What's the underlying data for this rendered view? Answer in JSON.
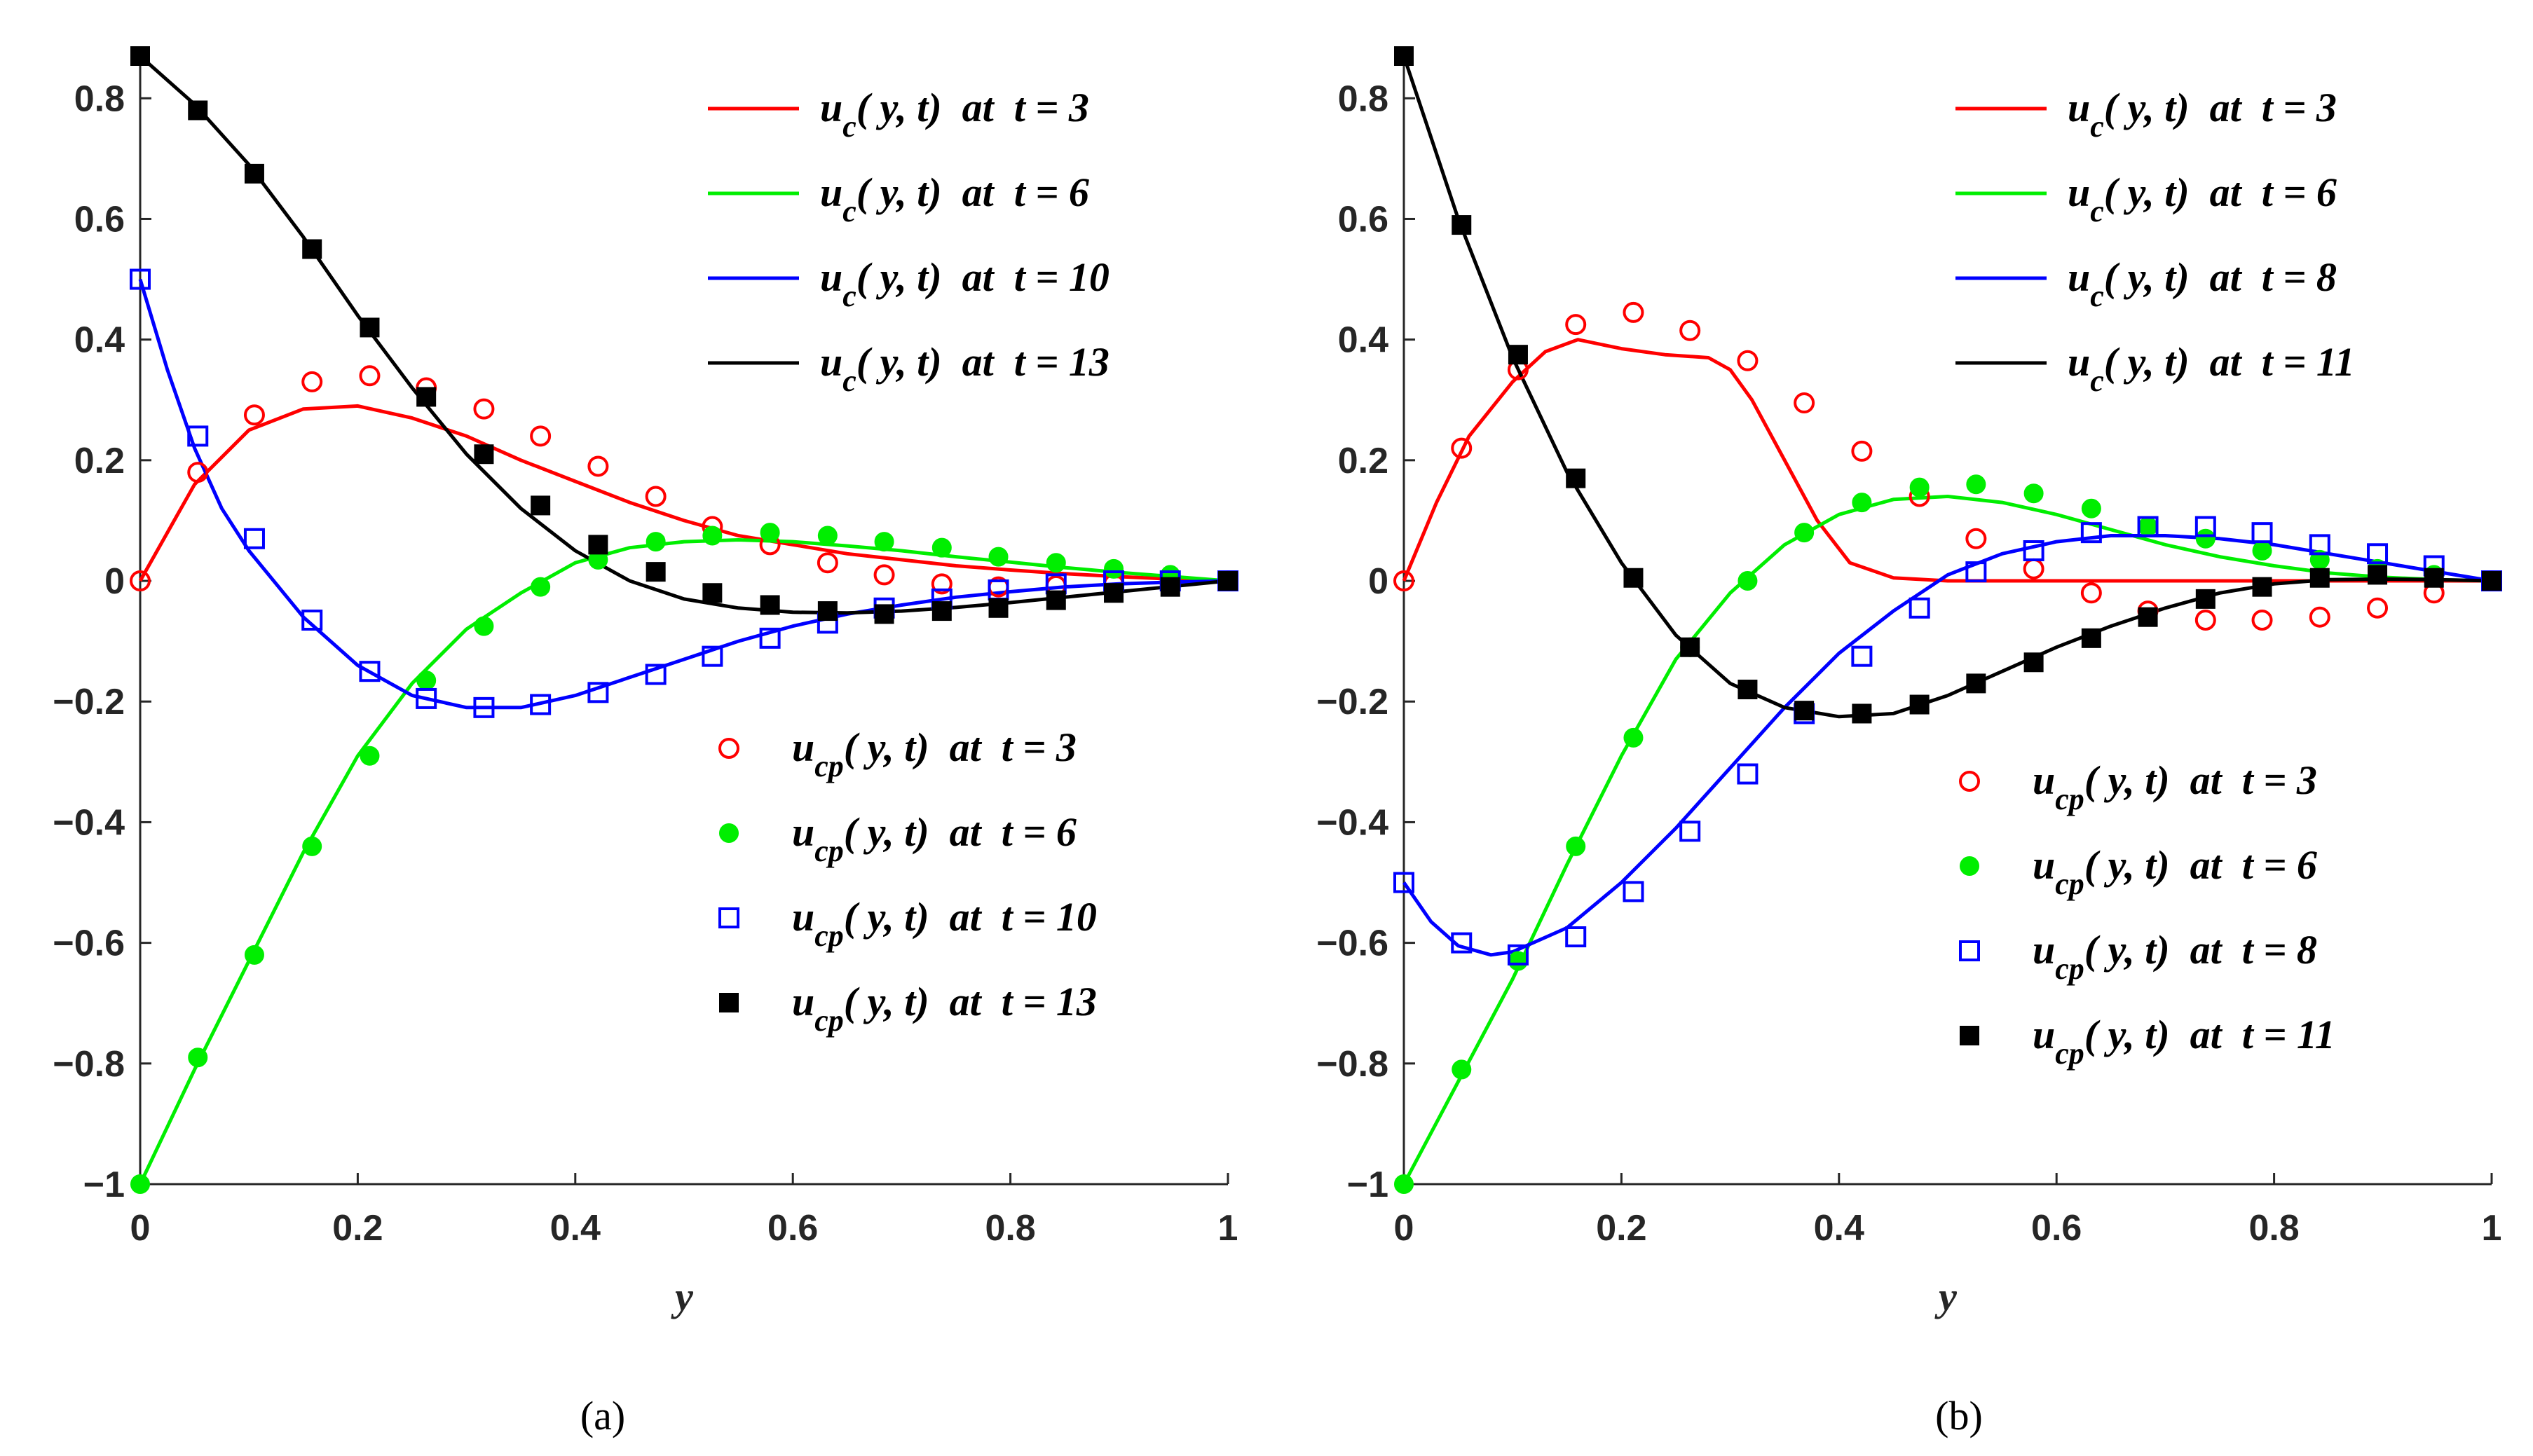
{
  "chart_data": [
    {
      "type": "line",
      "panel_label": "(a)",
      "xlabel": "y",
      "xlim": [
        0,
        1
      ],
      "ylim": [
        -1,
        0.87
      ],
      "xticks": [
        0,
        0.2,
        0.4,
        0.6,
        0.8,
        1
      ],
      "xtick_labels": [
        "0",
        "0.2",
        "0.4",
        "0.6",
        "0.8",
        "1"
      ],
      "yticks": [
        -1,
        -0.8,
        -0.6,
        -0.4,
        -0.2,
        0,
        0.2,
        0.4,
        0.6,
        0.8
      ],
      "ytick_labels": [
        "−1",
        "−0.8",
        "−0.6",
        "−0.4",
        "−0.2",
        "0",
        "0.2",
        "0.4",
        "0.6",
        "0.8"
      ],
      "legend_lines": {
        "placement": "top-right",
        "entries": [
          {
            "u": "u",
            "sub": "c",
            "rest": "( y, t)  at  t = 3",
            "color": "#ff0000"
          },
          {
            "u": "u",
            "sub": "c",
            "rest": "( y, t)  at  t = 6",
            "color": "#00ee00"
          },
          {
            "u": "u",
            "sub": "c",
            "rest": "( y, t)  at  t = 10",
            "color": "#0000ff"
          },
          {
            "u": "u",
            "sub": "c",
            "rest": "( y, t)  at  t = 13",
            "color": "#000000"
          }
        ]
      },
      "legend_markers": {
        "placement": "center-right",
        "entries": [
          {
            "u": "u",
            "sub": "cp",
            "rest": "( y, t)  at  t = 3",
            "marker": "circle-open",
            "color": "#ff0000"
          },
          {
            "u": "u",
            "sub": "cp",
            "rest": "( y, t)  at  t = 6",
            "marker": "circle-filled",
            "color": "#00ee00"
          },
          {
            "u": "u",
            "sub": "cp",
            "rest": "( y, t)  at  t = 10",
            "marker": "square-open",
            "color": "#0000ff"
          },
          {
            "u": "u",
            "sub": "cp",
            "rest": "( y, t)  at  t = 13",
            "marker": "square-filled",
            "color": "#000000"
          }
        ]
      },
      "series": [
        {
          "name": "u_c t=3",
          "kind": "line",
          "color": "#ff0000",
          "x": [
            0,
            0.05,
            0.1,
            0.15,
            0.2,
            0.25,
            0.3,
            0.35,
            0.4,
            0.45,
            0.5,
            0.55,
            0.6,
            0.65,
            0.7,
            0.75,
            0.8,
            0.85,
            0.9,
            0.95,
            1
          ],
          "y": [
            0,
            0.16,
            0.25,
            0.285,
            0.29,
            0.27,
            0.24,
            0.2,
            0.165,
            0.13,
            0.1,
            0.075,
            0.06,
            0.045,
            0.035,
            0.025,
            0.018,
            0.012,
            0.007,
            0.003,
            0
          ]
        },
        {
          "name": "u_c t=6",
          "kind": "line",
          "color": "#00ee00",
          "x": [
            0,
            0.05,
            0.1,
            0.15,
            0.2,
            0.25,
            0.3,
            0.35,
            0.4,
            0.45,
            0.5,
            0.55,
            0.6,
            0.65,
            0.7,
            0.75,
            0.8,
            0.85,
            0.9,
            0.95,
            1
          ],
          "y": [
            -1,
            -0.81,
            -0.63,
            -0.45,
            -0.29,
            -0.17,
            -0.08,
            -0.02,
            0.03,
            0.055,
            0.065,
            0.068,
            0.065,
            0.058,
            0.05,
            0.04,
            0.031,
            0.022,
            0.014,
            0.007,
            0
          ]
        },
        {
          "name": "u_c t=10",
          "kind": "line",
          "color": "#0000ff",
          "x": [
            0,
            0.025,
            0.05,
            0.075,
            0.1,
            0.15,
            0.2,
            0.25,
            0.3,
            0.35,
            0.4,
            0.45,
            0.5,
            0.55,
            0.6,
            0.65,
            0.7,
            0.75,
            0.8,
            0.85,
            0.9,
            0.95,
            1
          ],
          "y": [
            0.5,
            0.35,
            0.22,
            0.12,
            0.05,
            -0.06,
            -0.14,
            -0.19,
            -0.21,
            -0.21,
            -0.19,
            -0.16,
            -0.13,
            -0.1,
            -0.075,
            -0.055,
            -0.04,
            -0.027,
            -0.018,
            -0.01,
            -0.005,
            -0.002,
            0
          ]
        },
        {
          "name": "u_c t=13",
          "kind": "line",
          "color": "#000000",
          "x": [
            0,
            0.05,
            0.1,
            0.15,
            0.2,
            0.25,
            0.3,
            0.35,
            0.4,
            0.45,
            0.5,
            0.55,
            0.6,
            0.65,
            0.7,
            0.75,
            0.8,
            0.85,
            0.9,
            0.95,
            1
          ],
          "y": [
            0.87,
            0.79,
            0.69,
            0.57,
            0.44,
            0.32,
            0.21,
            0.12,
            0.05,
            0,
            -0.03,
            -0.045,
            -0.052,
            -0.053,
            -0.05,
            -0.044,
            -0.036,
            -0.027,
            -0.018,
            -0.009,
            0
          ]
        },
        {
          "name": "u_cp t=3",
          "kind": "marker",
          "marker": "circle-open",
          "color": "#ff0000",
          "x": [
            0,
            0.053,
            0.105,
            0.158,
            0.211,
            0.263,
            0.316,
            0.368,
            0.421,
            0.474,
            0.526,
            0.579,
            0.632,
            0.684,
            0.737,
            0.789,
            0.842,
            0.895,
            0.947,
            1
          ],
          "y": [
            0,
            0.18,
            0.275,
            0.33,
            0.34,
            0.32,
            0.285,
            0.24,
            0.19,
            0.14,
            0.09,
            0.06,
            0.03,
            0.01,
            -0.005,
            -0.01,
            -0.008,
            -0.005,
            -0.002,
            0
          ]
        },
        {
          "name": "u_cp t=6",
          "kind": "marker",
          "marker": "circle-filled",
          "color": "#00ee00",
          "x": [
            0,
            0.053,
            0.105,
            0.158,
            0.211,
            0.263,
            0.316,
            0.368,
            0.421,
            0.474,
            0.526,
            0.579,
            0.632,
            0.684,
            0.737,
            0.789,
            0.842,
            0.895,
            0.947,
            1
          ],
          "y": [
            -1,
            -0.79,
            -0.62,
            -0.44,
            -0.29,
            -0.165,
            -0.075,
            -0.01,
            0.035,
            0.065,
            0.075,
            0.08,
            0.075,
            0.065,
            0.055,
            0.04,
            0.03,
            0.02,
            0.01,
            0
          ]
        },
        {
          "name": "u_cp t=10",
          "kind": "marker",
          "marker": "square-open",
          "color": "#0000ff",
          "x": [
            0,
            0.053,
            0.105,
            0.158,
            0.211,
            0.263,
            0.316,
            0.368,
            0.421,
            0.474,
            0.526,
            0.579,
            0.632,
            0.684,
            0.737,
            0.789,
            0.842,
            0.895,
            0.947,
            1
          ],
          "y": [
            0.5,
            0.24,
            0.07,
            -0.065,
            -0.15,
            -0.195,
            -0.21,
            -0.205,
            -0.185,
            -0.155,
            -0.125,
            -0.095,
            -0.07,
            -0.045,
            -0.03,
            -0.015,
            -0.005,
            0,
            0,
            0
          ]
        },
        {
          "name": "u_cp t=13",
          "kind": "marker",
          "marker": "square-filled",
          "color": "#000000",
          "x": [
            0,
            0.053,
            0.105,
            0.158,
            0.211,
            0.263,
            0.316,
            0.368,
            0.421,
            0.474,
            0.526,
            0.579,
            0.632,
            0.684,
            0.737,
            0.789,
            0.842,
            0.895,
            0.947,
            1
          ],
          "y": [
            0.87,
            0.78,
            0.675,
            0.55,
            0.42,
            0.305,
            0.21,
            0.125,
            0.06,
            0.015,
            -0.02,
            -0.04,
            -0.05,
            -0.055,
            -0.05,
            -0.045,
            -0.032,
            -0.02,
            -0.01,
            0
          ]
        }
      ]
    },
    {
      "type": "line",
      "panel_label": "(b)",
      "xlabel": "y",
      "xlim": [
        0,
        1
      ],
      "ylim": [
        -1,
        0.87
      ],
      "xticks": [
        0,
        0.2,
        0.4,
        0.6,
        0.8,
        1
      ],
      "xtick_labels": [
        "0",
        "0.2",
        "0.4",
        "0.6",
        "0.8",
        "1"
      ],
      "yticks": [
        -1,
        -0.8,
        -0.6,
        -0.4,
        -0.2,
        0,
        0.2,
        0.4,
        0.6,
        0.8
      ],
      "ytick_labels": [
        "−1",
        "−0.8",
        "−0.6",
        "−0.4",
        "−0.2",
        "0",
        "0.2",
        "0.4",
        "0.6",
        "0.8"
      ],
      "legend_lines": {
        "placement": "top-right",
        "entries": [
          {
            "u": "u",
            "sub": "c",
            "rest": "( y, t)  at  t = 3",
            "color": "#ff0000"
          },
          {
            "u": "u",
            "sub": "c",
            "rest": "( y, t)  at  t = 6",
            "color": "#00ee00"
          },
          {
            "u": "u",
            "sub": "c",
            "rest": "( y, t)  at  t = 8",
            "color": "#0000ff"
          },
          {
            "u": "u",
            "sub": "c",
            "rest": "( y, t)  at  t = 11",
            "color": "#000000"
          }
        ]
      },
      "legend_markers": {
        "placement": "center-right",
        "entries": [
          {
            "u": "u",
            "sub": "cp",
            "rest": "( y, t)  at  t = 3",
            "marker": "circle-open",
            "color": "#ff0000"
          },
          {
            "u": "u",
            "sub": "cp",
            "rest": "( y, t)  at  t = 6",
            "marker": "circle-filled",
            "color": "#00ee00"
          },
          {
            "u": "u",
            "sub": "cp",
            "rest": "( y, t)  at  t = 8",
            "marker": "square-open",
            "color": "#0000ff"
          },
          {
            "u": "u",
            "sub": "cp",
            "rest": "( y, t)  at  t = 11",
            "marker": "square-filled",
            "color": "#000000"
          }
        ]
      },
      "series": [
        {
          "name": "u_c t=3",
          "kind": "line",
          "color": "#ff0000",
          "x": [
            0,
            0.03,
            0.06,
            0.1,
            0.13,
            0.16,
            0.2,
            0.24,
            0.28,
            0.3,
            0.32,
            0.35,
            0.38,
            0.41,
            0.45,
            0.5,
            0.6,
            0.7,
            0.8,
            0.9,
            1
          ],
          "y": [
            0,
            0.13,
            0.24,
            0.33,
            0.38,
            0.4,
            0.385,
            0.375,
            0.37,
            0.35,
            0.3,
            0.2,
            0.1,
            0.03,
            0.005,
            0,
            0,
            0,
            0,
            0,
            0
          ]
        },
        {
          "name": "u_c t=6",
          "kind": "line",
          "color": "#00ee00",
          "x": [
            0,
            0.05,
            0.1,
            0.15,
            0.2,
            0.25,
            0.3,
            0.35,
            0.4,
            0.45,
            0.5,
            0.55,
            0.6,
            0.65,
            0.7,
            0.75,
            0.8,
            0.85,
            0.9,
            0.95,
            1
          ],
          "y": [
            -1,
            -0.83,
            -0.66,
            -0.47,
            -0.29,
            -0.13,
            -0.02,
            0.06,
            0.11,
            0.135,
            0.14,
            0.13,
            0.11,
            0.085,
            0.06,
            0.04,
            0.025,
            0.013,
            0.006,
            0.002,
            0
          ]
        },
        {
          "name": "u_c t=8",
          "kind": "line",
          "color": "#0000ff",
          "x": [
            0,
            0.025,
            0.05,
            0.08,
            0.1,
            0.15,
            0.2,
            0.25,
            0.3,
            0.35,
            0.4,
            0.45,
            0.5,
            0.55,
            0.6,
            0.65,
            0.7,
            0.75,
            0.8,
            0.85,
            0.9,
            0.95,
            1
          ],
          "y": [
            -0.5,
            -0.565,
            -0.605,
            -0.62,
            -0.615,
            -0.575,
            -0.5,
            -0.41,
            -0.31,
            -0.21,
            -0.12,
            -0.05,
            0.01,
            0.045,
            0.065,
            0.075,
            0.075,
            0.07,
            0.06,
            0.045,
            0.03,
            0.015,
            0
          ]
        },
        {
          "name": "u_c t=11",
          "kind": "line",
          "color": "#000000",
          "x": [
            0,
            0.05,
            0.1,
            0.15,
            0.2,
            0.25,
            0.3,
            0.35,
            0.4,
            0.45,
            0.5,
            0.55,
            0.6,
            0.65,
            0.7,
            0.75,
            0.8,
            0.85,
            0.9,
            0.95,
            1
          ],
          "y": [
            0.87,
            0.6,
            0.37,
            0.18,
            0.03,
            -0.09,
            -0.17,
            -0.21,
            -0.225,
            -0.22,
            -0.19,
            -0.15,
            -0.11,
            -0.075,
            -0.045,
            -0.02,
            -0.005,
            0.002,
            0.003,
            0.002,
            0
          ]
        },
        {
          "name": "u_cp t=3",
          "kind": "marker",
          "marker": "circle-open",
          "color": "#ff0000",
          "x": [
            0,
            0.053,
            0.105,
            0.158,
            0.211,
            0.263,
            0.316,
            0.368,
            0.421,
            0.474,
            0.526,
            0.579,
            0.632,
            0.684,
            0.737,
            0.789,
            0.842,
            0.895,
            0.947,
            1
          ],
          "y": [
            0,
            0.22,
            0.35,
            0.425,
            0.445,
            0.415,
            0.365,
            0.295,
            0.215,
            0.14,
            0.07,
            0.02,
            -0.02,
            -0.05,
            -0.065,
            -0.065,
            -0.06,
            -0.045,
            -0.02,
            0
          ]
        },
        {
          "name": "u_cp t=6",
          "kind": "marker",
          "marker": "circle-filled",
          "color": "#00ee00",
          "x": [
            0,
            0.053,
            0.105,
            0.158,
            0.211,
            0.263,
            0.316,
            0.368,
            0.421,
            0.474,
            0.526,
            0.579,
            0.632,
            0.684,
            0.737,
            0.789,
            0.842,
            0.895,
            0.947,
            1
          ],
          "y": [
            -1,
            -0.81,
            -0.63,
            -0.44,
            -0.26,
            -0.11,
            0,
            0.08,
            0.13,
            0.155,
            0.16,
            0.145,
            0.12,
            0.09,
            0.07,
            0.05,
            0.035,
            0.02,
            0.01,
            0
          ]
        },
        {
          "name": "u_cp t=8",
          "kind": "marker",
          "marker": "square-open",
          "color": "#0000ff",
          "x": [
            0,
            0.053,
            0.105,
            0.158,
            0.211,
            0.263,
            0.316,
            0.368,
            0.421,
            0.474,
            0.526,
            0.579,
            0.632,
            0.684,
            0.737,
            0.789,
            0.842,
            0.895,
            0.947,
            1
          ],
          "y": [
            -0.5,
            -0.6,
            -0.62,
            -0.59,
            -0.515,
            -0.415,
            -0.32,
            -0.22,
            -0.125,
            -0.045,
            0.015,
            0.05,
            0.08,
            0.09,
            0.09,
            0.08,
            0.06,
            0.045,
            0.025,
            0
          ]
        },
        {
          "name": "u_cp t=11",
          "kind": "marker",
          "marker": "square-filled",
          "color": "#000000",
          "x": [
            0,
            0.053,
            0.105,
            0.158,
            0.211,
            0.263,
            0.316,
            0.368,
            0.421,
            0.474,
            0.526,
            0.579,
            0.632,
            0.684,
            0.737,
            0.789,
            0.842,
            0.895,
            0.947,
            1
          ],
          "y": [
            0.87,
            0.59,
            0.375,
            0.17,
            0.005,
            -0.11,
            -0.18,
            -0.215,
            -0.22,
            -0.205,
            -0.17,
            -0.135,
            -0.095,
            -0.06,
            -0.03,
            -0.01,
            0.005,
            0.01,
            0.005,
            0
          ]
        }
      ]
    }
  ]
}
